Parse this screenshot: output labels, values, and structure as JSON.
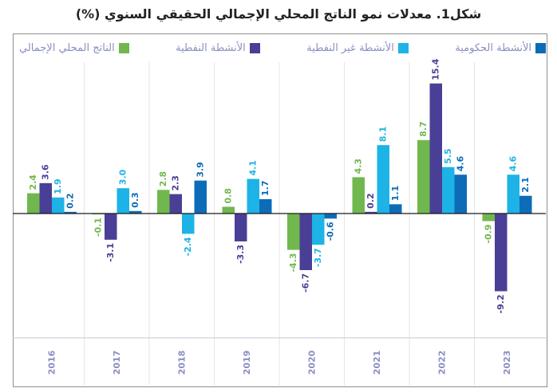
{
  "title": "شكل1. معدلات نمو الناتج المحلي الإجمالي الحقيقي السنوي (%)",
  "chart_data": {
    "type": "bar",
    "categories": [
      "2016",
      "2017",
      "2018",
      "2019",
      "2020",
      "2021",
      "2022",
      "2023"
    ],
    "series": [
      {
        "name": "الناتج المحلي الإجمالي",
        "color": "#70b84e",
        "values": [
          2.4,
          -0.1,
          2.8,
          0.8,
          -4.3,
          4.3,
          8.7,
          -0.9
        ]
      },
      {
        "name": "الأنشطة النفطية",
        "color": "#4a3f96",
        "values": [
          3.6,
          -3.1,
          2.3,
          -3.3,
          -6.7,
          0.2,
          15.4,
          -9.2
        ]
      },
      {
        "name": "الأنشطة غير النفطية",
        "color": "#1db3e6",
        "values": [
          1.9,
          3.0,
          -2.4,
          4.1,
          -3.7,
          8.1,
          5.5,
          4.6
        ]
      },
      {
        "name": "الأنشطة الحكومية",
        "color": "#0d6cb8",
        "values": [
          0.2,
          0.3,
          3.9,
          1.7,
          -0.6,
          1.1,
          4.6,
          2.1
        ]
      }
    ],
    "legend_position": "top",
    "grid": false,
    "ylim": [
      -15,
      17.5
    ]
  }
}
